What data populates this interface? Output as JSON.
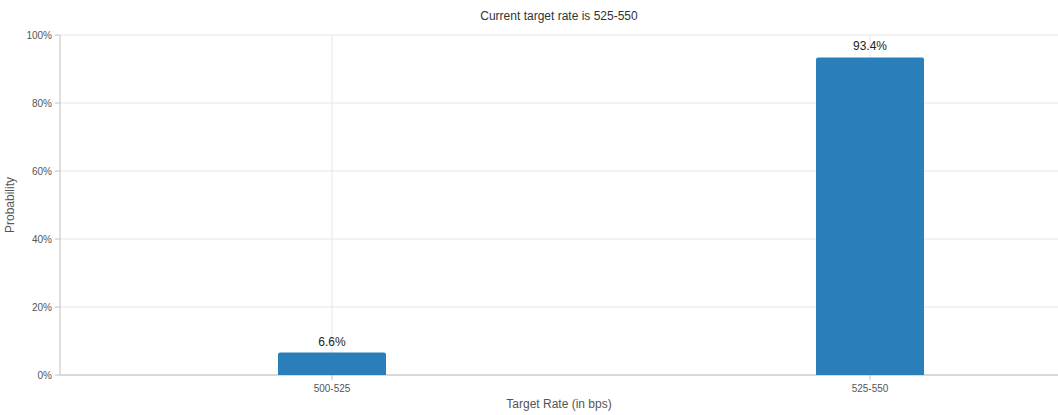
{
  "chart_data": {
    "type": "bar",
    "title": "Current target rate is 525-550",
    "x_label": "Target Rate (in bps)",
    "y_label": "Probability",
    "categories": [
      "500-525",
      "525-550"
    ],
    "values": [
      6.6,
      93.4
    ],
    "value_labels": [
      "6.6%",
      "93.4%"
    ],
    "color": "#2a7fba",
    "ylim": [
      0,
      100
    ],
    "yticks": [
      {
        "value": 0,
        "label": "0%"
      },
      {
        "value": 20,
        "label": "20%"
      },
      {
        "value": 40,
        "label": "40%"
      },
      {
        "value": 60,
        "label": "60%"
      },
      {
        "value": 80,
        "label": "80%"
      },
      {
        "value": 100,
        "label": "100%"
      }
    ],
    "grid": true,
    "data_labels": true
  }
}
